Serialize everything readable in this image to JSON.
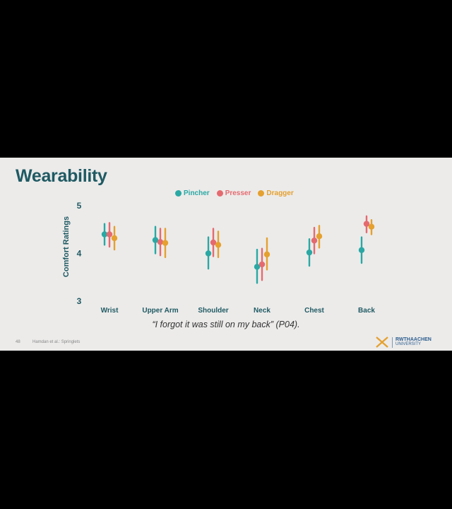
{
  "slide": {
    "title": "Wearability",
    "quote": "“I forgot it was still on my back” (P04).",
    "page_number": "48",
    "reference": "Hamdan et al.: Springlets",
    "logo": {
      "line1": "RWTHAACHEN",
      "line2": "UNIVERSITY"
    }
  },
  "chart_data": {
    "type": "scatter",
    "title": "",
    "xlabel": "",
    "ylabel": "Comfort Ratings",
    "ylim": [
      3,
      5
    ],
    "yticks": [
      "3",
      "4",
      "5"
    ],
    "grid": false,
    "legend_position": "top-center",
    "categories": [
      "Wrist",
      "Upper Arm",
      "Shoulder",
      "Neck",
      "Chest",
      "Back"
    ],
    "series": [
      {
        "name": "Pincher",
        "color": "#2aa8a4",
        "values": [
          4.4,
          4.28,
          4.0,
          3.72,
          4.02,
          4.07
        ],
        "ci_low": [
          4.18,
          4.0,
          3.68,
          3.38,
          3.74,
          3.8
        ],
        "ci_high": [
          4.62,
          4.56,
          4.34,
          4.08,
          4.3,
          4.34
        ]
      },
      {
        "name": "Presser",
        "color": "#e56a6f",
        "values": [
          4.4,
          4.24,
          4.23,
          3.77,
          4.27,
          4.62
        ],
        "ci_low": [
          4.14,
          3.96,
          3.94,
          3.44,
          4.0,
          4.44
        ],
        "ci_high": [
          4.64,
          4.52,
          4.52,
          4.1,
          4.54,
          4.78
        ]
      },
      {
        "name": "Dragger",
        "color": "#e5a02e",
        "values": [
          4.32,
          4.22,
          4.18,
          3.98,
          4.36,
          4.56
        ],
        "ci_low": [
          4.08,
          3.92,
          3.92,
          3.66,
          4.12,
          4.4
        ],
        "ci_high": [
          4.56,
          4.52,
          4.46,
          4.32,
          4.58,
          4.7
        ]
      }
    ]
  }
}
